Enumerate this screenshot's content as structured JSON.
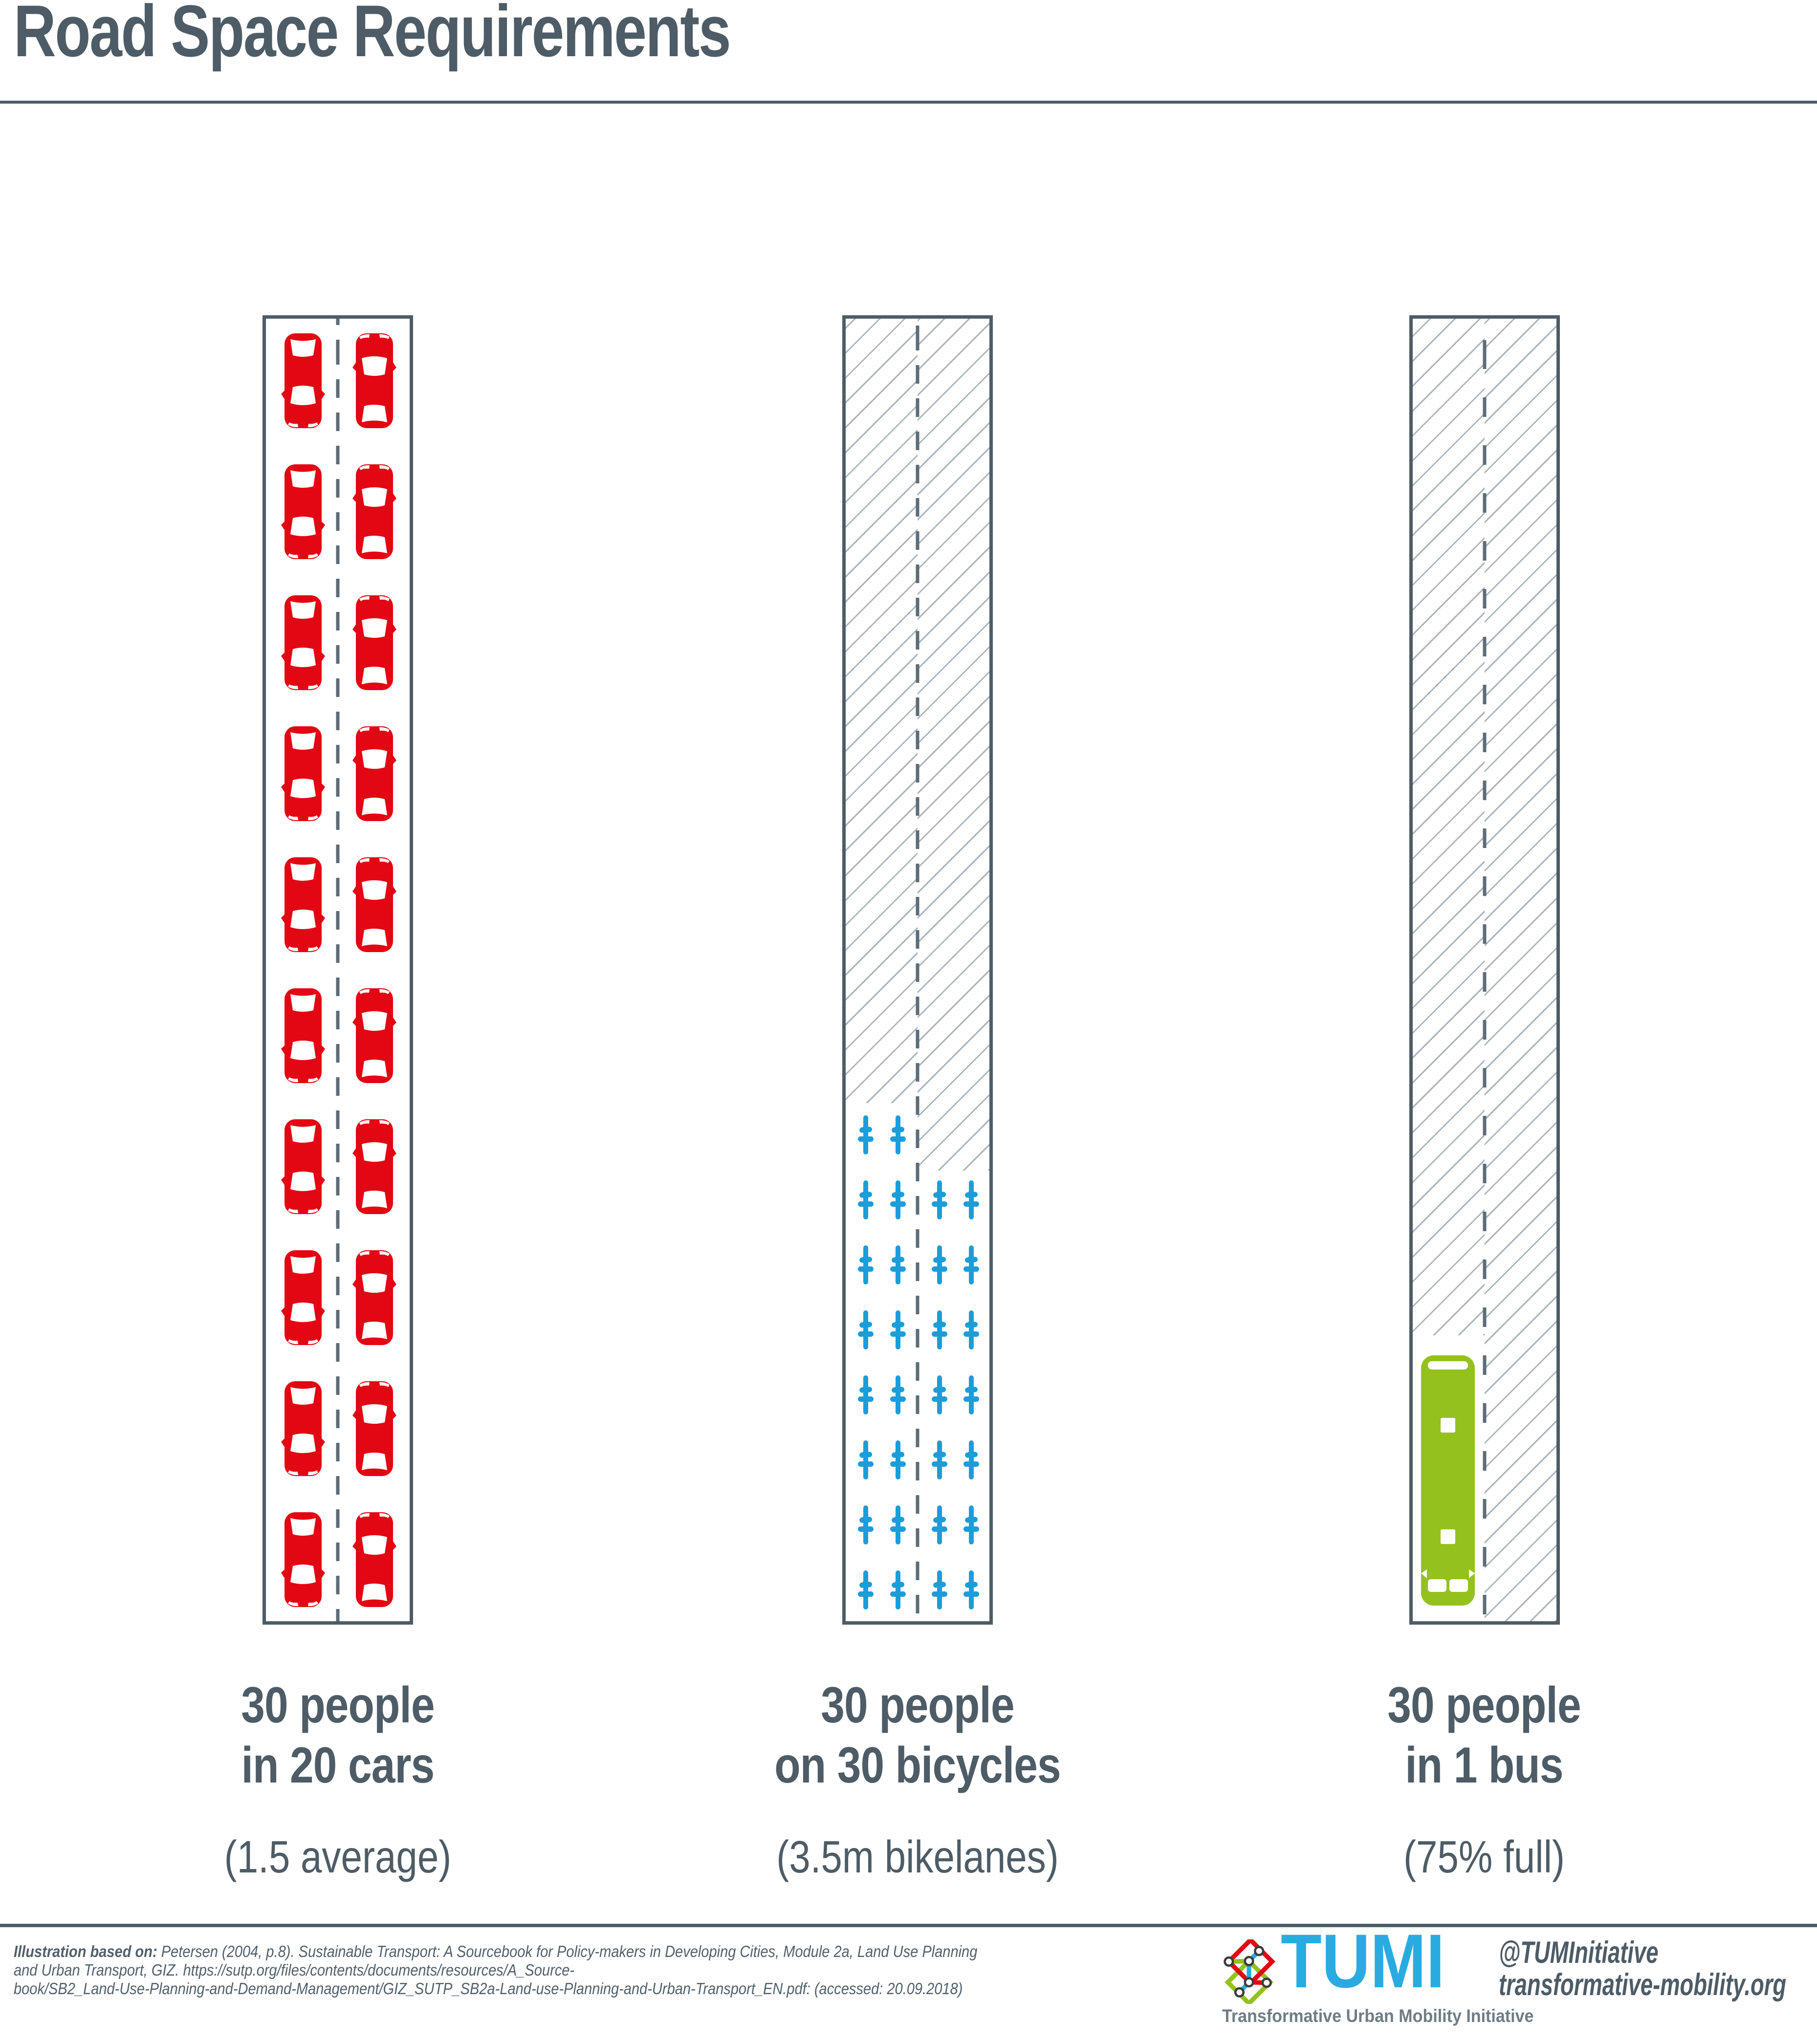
{
  "title": "Road Space Requirements",
  "columns": [
    {
      "label_line1": "30 people",
      "label_line2": "in 20 cars",
      "note": "(1.5 average)"
    },
    {
      "label_line1": "30 people",
      "label_line2": "on 30 bicycles",
      "note": "(3.5m bikelanes)"
    },
    {
      "label_line1": "30 people",
      "label_line2": "in 1 bus",
      "note": "(75% full)"
    }
  ],
  "footer": {
    "citation_bold": "Illustration based on:",
    "citation_line1_rest": " Petersen (2004, p.8). Sustainable Transport: A Sourcebook for Policy-makers in Developing Cities, Module 2a, Land Use Planning",
    "citation_line2": "and Urban Transport, GIZ. https://sutp.org/files/contents/documents/resources/A_Source-",
    "citation_line3": "book/SB2_Land-Use-Planning-and-Demand-Management/GIZ_SUTP_SB2a-Land-use-Planning-and-Urban-Transport_EN.pdf: (accessed: 20.09.2018)",
    "logo_wordmark": "TUMI",
    "logo_tagline": "Transformative Urban Mobility Initiative",
    "social_handle": "@TUMInitiative",
    "website": "transformative-mobility.org"
  },
  "colors": {
    "car_red": "#e30613",
    "bicycle_blue": "#1b9dd9",
    "bus_green": "#95c11f",
    "slate": "#4d5c66",
    "hatch_gray": "#aab4bb",
    "logo_blue": "#29abe2",
    "logo_red": "#e30613",
    "logo_green": "#95c11f"
  },
  "chart_data": {
    "type": "pictogram",
    "title": "Road Space Requirements",
    "categories": [
      "30 people in 20 cars",
      "30 people on 30 bicycles",
      "30 people in 1 bus"
    ],
    "series": [
      {
        "mode": "cars",
        "people": 30,
        "vehicles": 20,
        "note": "(1.5 average)",
        "icon_color": "#e30613",
        "arrangement": {
          "rows": 10,
          "per_row": 2
        }
      },
      {
        "mode": "bicycles",
        "people": 30,
        "vehicles": 30,
        "note": "(3.5m bikelanes)",
        "icon_color": "#1b9dd9",
        "arrangement": {
          "first_row": 2,
          "rows_of_four": 7
        }
      },
      {
        "mode": "bus",
        "people": 30,
        "vehicles": 1,
        "note": "(75% full)",
        "icon_color": "#95c11f",
        "arrangement": {
          "rows": 1,
          "per_row": 1
        }
      }
    ]
  }
}
